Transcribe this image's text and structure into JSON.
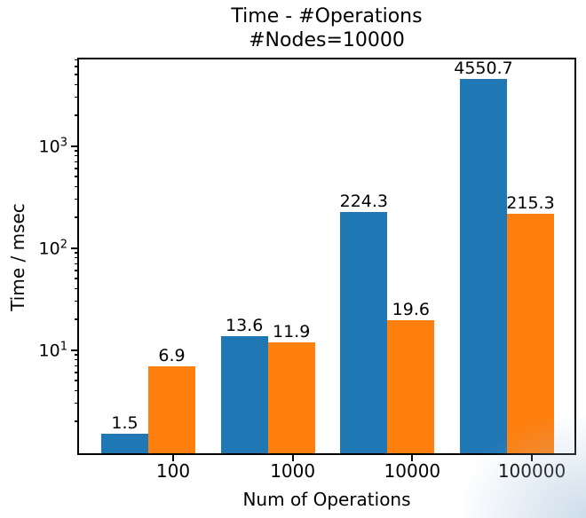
{
  "title_lines": [
    "Time - #Operations",
    "#Nodes=10000"
  ],
  "chart_data": {
    "type": "bar",
    "title": "Time - #Operations",
    "subtitle": "#Nodes=10000",
    "categories": [
      "100",
      "1000",
      "10000",
      "100000"
    ],
    "series": [
      {
        "color": "#1f77b4",
        "values": [
          1.5,
          13.6,
          224.3,
          4550.7
        ]
      },
      {
        "color": "#ff7f0e",
        "values": [
          6.9,
          11.9,
          19.6,
          215.3
        ]
      }
    ],
    "bar_value_labels": [
      [
        "1.5",
        "13.6",
        "224.3",
        "4550.7"
      ],
      [
        "6.9",
        "11.9",
        "19.6",
        "215.3"
      ]
    ],
    "xlabel": "Num of Operations",
    "ylabel": "Time / msec",
    "yscale": "log",
    "ylim": [
      1,
      7100
    ],
    "ytick_exponents": [
      1,
      2,
      3
    ],
    "grid": false,
    "legend_position": "none",
    "axis_color": "#000000",
    "background_color": "#ffffff"
  }
}
